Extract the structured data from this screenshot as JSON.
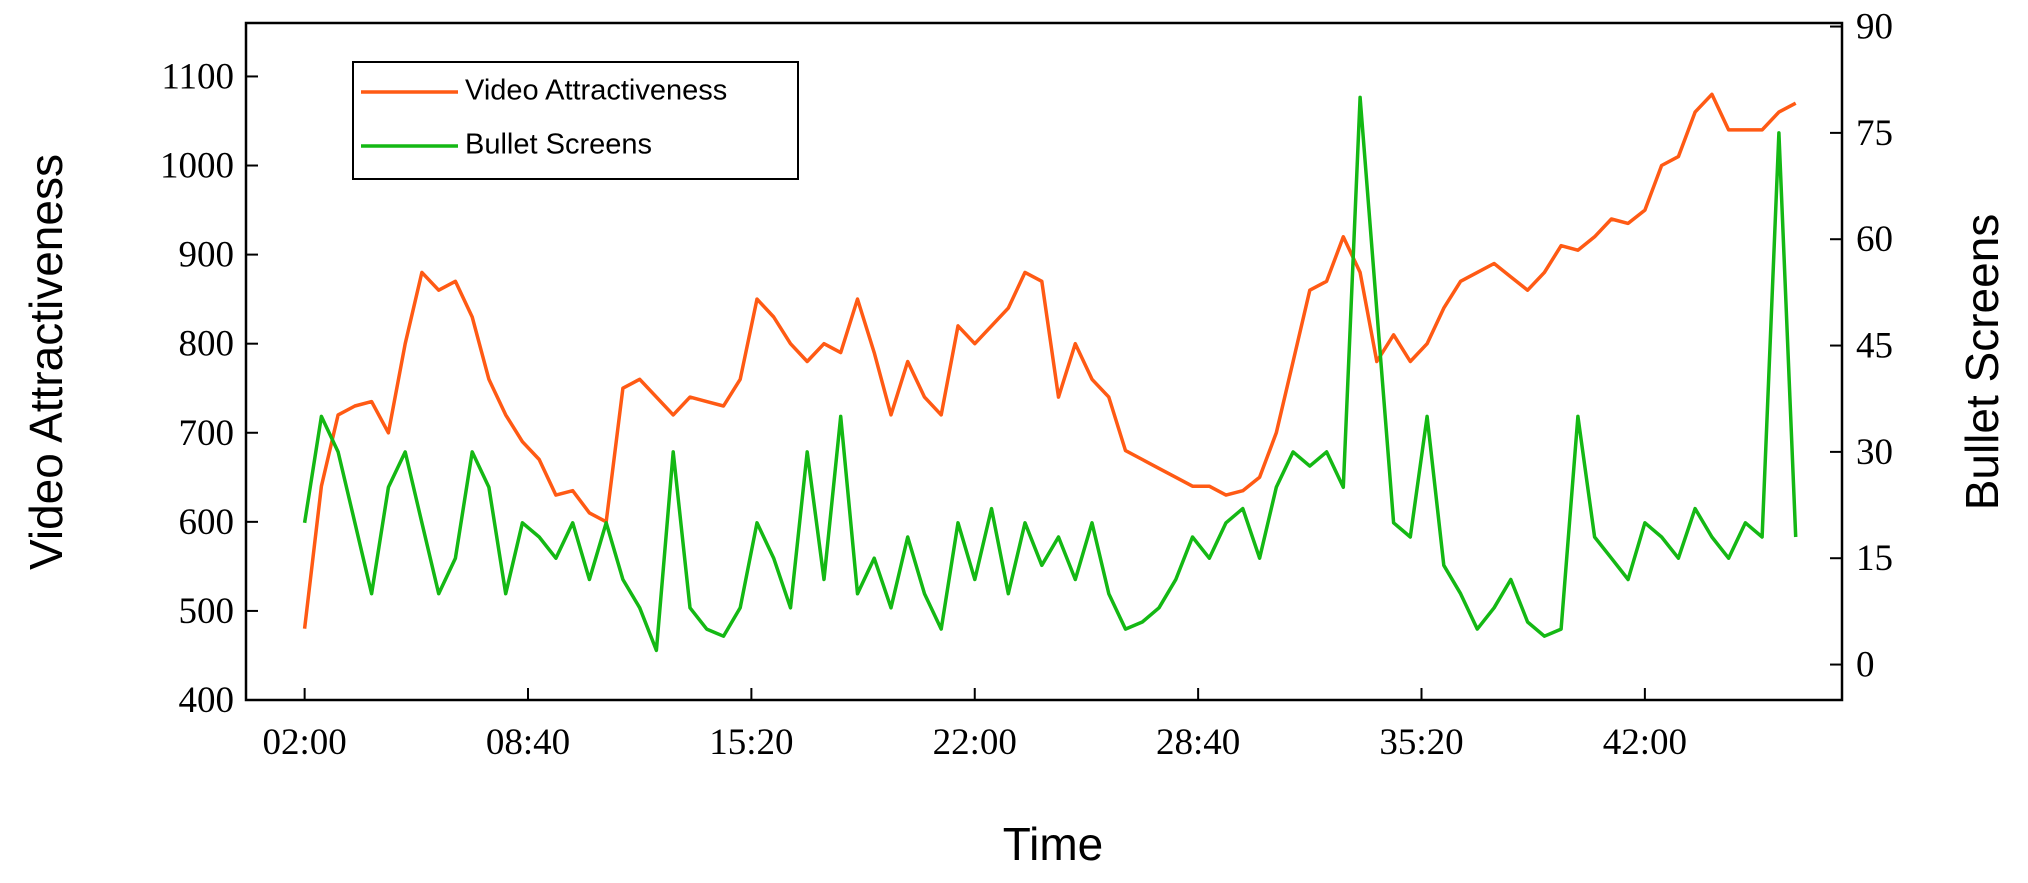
{
  "chart_data": {
    "type": "line",
    "x_label": "Time",
    "y_label": "Video Attractiveness",
    "y2_label": "Bullet Screens",
    "x": [
      120,
      150,
      180,
      210,
      240,
      270,
      300,
      330,
      360,
      390,
      420,
      450,
      480,
      510,
      540,
      570,
      600,
      630,
      660,
      690,
      720,
      750,
      780,
      810,
      840,
      870,
      900,
      930,
      960,
      990,
      1020,
      1050,
      1080,
      1110,
      1140,
      1170,
      1200,
      1230,
      1260,
      1290,
      1320,
      1350,
      1380,
      1410,
      1440,
      1470,
      1500,
      1530,
      1560,
      1590,
      1620,
      1650,
      1680,
      1710,
      1740,
      1770,
      1800,
      1830,
      1860,
      1890,
      1920,
      1950,
      1980,
      2010,
      2040,
      2070,
      2100,
      2130,
      2160,
      2190,
      2220,
      2250,
      2280,
      2310,
      2340,
      2370,
      2400,
      2430,
      2460,
      2490,
      2520,
      2550,
      2580,
      2610,
      2640,
      2670,
      2700,
      2730,
      2760,
      2790
    ],
    "series": [
      {
        "name": "Video Attractiveness",
        "color": "#ff5a14",
        "values": [
          480,
          640,
          720,
          730,
          735,
          700,
          800,
          880,
          860,
          870,
          830,
          760,
          720,
          690,
          670,
          630,
          635,
          610,
          600,
          750,
          760,
          740,
          720,
          740,
          735,
          730,
          760,
          850,
          830,
          800,
          780,
          800,
          790,
          850,
          790,
          720,
          780,
          740,
          720,
          820,
          800,
          820,
          840,
          880,
          870,
          740,
          800,
          760,
          740,
          680,
          670,
          660,
          650,
          640,
          640,
          630,
          635,
          650,
          700,
          780,
          860,
          870,
          920,
          880,
          780,
          810,
          780,
          800,
          840,
          870,
          880,
          890,
          875,
          860,
          880,
          910,
          905,
          920,
          940,
          935,
          950,
          1000,
          1010,
          1060,
          1080,
          1040,
          1040,
          1040,
          1060,
          1070
        ]
      },
      {
        "name": "Bullet Screens",
        "color": "#14b814",
        "axis": "y2",
        "values": [
          20,
          35,
          30,
          20,
          10,
          25,
          30,
          20,
          10,
          15,
          30,
          25,
          10,
          20,
          18,
          15,
          20,
          12,
          20,
          12,
          8,
          2,
          30,
          8,
          5,
          4,
          8,
          20,
          15,
          8,
          30,
          12,
          35,
          10,
          15,
          8,
          18,
          10,
          5,
          20,
          12,
          22,
          10,
          20,
          14,
          18,
          12,
          20,
          10,
          5,
          6,
          8,
          12,
          18,
          15,
          20,
          22,
          15,
          25,
          30,
          28,
          30,
          25,
          80,
          50,
          20,
          18,
          35,
          14,
          10,
          5,
          8,
          12,
          6,
          4,
          5,
          35,
          18,
          15,
          12,
          20,
          18,
          15,
          22,
          18,
          15,
          20,
          18,
          75,
          18
        ]
      }
    ],
    "xlim": [
      15,
      2873
    ],
    "xticks": [
      {
        "value": 120,
        "label": "02:00"
      },
      {
        "value": 520,
        "label": "08:40"
      },
      {
        "value": 920,
        "label": "15:20"
      },
      {
        "value": 1320,
        "label": "22:00"
      },
      {
        "value": 1720,
        "label": "28:40"
      },
      {
        "value": 2120,
        "label": "35:20"
      },
      {
        "value": 2520,
        "label": "42:00"
      }
    ],
    "ylim": [
      400,
      1160
    ],
    "yticks": [
      400,
      500,
      600,
      700,
      800,
      900,
      1000,
      1100
    ],
    "y2lim": [
      -5,
      90.5
    ],
    "y2ticks": [
      0,
      15,
      30,
      45,
      60,
      75,
      90
    ],
    "legend": "upper left"
  }
}
